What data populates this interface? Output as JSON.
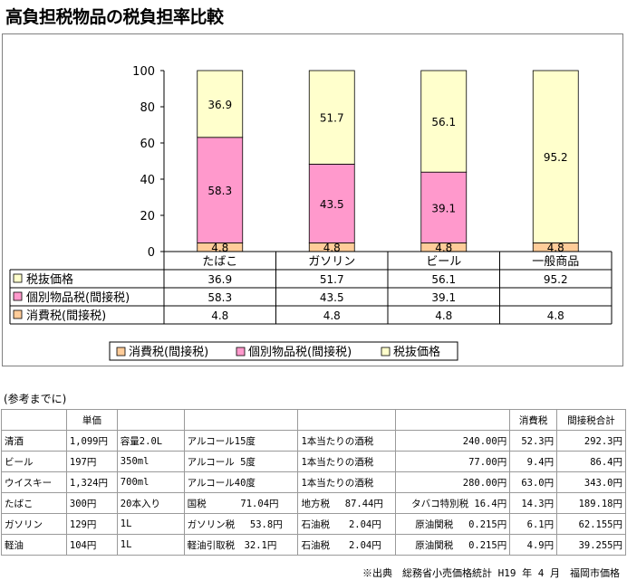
{
  "title": "高負担税物品の税負担率比較",
  "chart_data": {
    "type": "bar",
    "stacked": true,
    "categories": [
      "たばこ",
      "ガソリン",
      "ビール",
      "一般商品"
    ],
    "series": [
      {
        "name": "消費税(間接税)",
        "values": [
          4.8,
          4.8,
          4.8,
          4.8
        ],
        "color": "#ffcc99"
      },
      {
        "name": "個別物品税(間接税)",
        "values": [
          58.3,
          43.5,
          39.1,
          null
        ],
        "color": "#ff99cc"
      },
      {
        "name": "税抜価格",
        "values": [
          36.9,
          51.7,
          56.1,
          95.2
        ],
        "color": "#ffffcc"
      }
    ],
    "ylim": [
      0,
      100
    ],
    "yticks": [
      "0",
      "20",
      "40",
      "60",
      "80",
      "100"
    ],
    "legend_position": "bottom",
    "data_table": {
      "rows": [
        {
          "label": "税抜価格",
          "values": [
            "36.9",
            "51.7",
            "56.1",
            "95.2"
          ]
        },
        {
          "label": "個別物品税(間接税)",
          "values": [
            "58.3",
            "43.5",
            "39.1",
            ""
          ]
        },
        {
          "label": "消費税(間接税)",
          "values": [
            "4.8",
            "4.8",
            "4.8",
            "4.8"
          ]
        }
      ]
    }
  },
  "reference": {
    "heading": "(参考までに)",
    "header": [
      "",
      "単価",
      "",
      "",
      "",
      "",
      "消費税",
      "間接税合計"
    ],
    "rows": [
      [
        "清酒",
        "1,099円",
        "容量2.0L",
        "アルコール15度",
        "1本当たりの酒税",
        "240.00円",
        "52.3円",
        "292.3円"
      ],
      [
        "ビール",
        "197円",
        "350ml",
        "アルコール 5度",
        "1本当たりの酒税",
        "77.00円",
        "9.4円",
        "86.4円"
      ],
      [
        "ウイスキー",
        "1,324円",
        "700ml",
        "アルコール40度",
        "1本当たりの酒税",
        "280.00円",
        "63.0円",
        "343.0円"
      ],
      [
        "たばこ",
        "300円",
        "20本入り",
        "国税　　　 71.04円",
        "地方税　 87.44円",
        "タバコ特別税 16.4円",
        "14.3円",
        "189.18円"
      ],
      [
        "ガソリン",
        "129円",
        "1L",
        "ガソリン税　 53.8円",
        "石油税　　2.04円",
        "原油関税　 0.215円",
        "6.1円",
        "62.155円"
      ],
      [
        "軽油",
        "104円",
        "1L",
        "軽油引取税　32.1円",
        "石油税　　2.04円",
        "原油関税　 0.215円",
        "4.9円",
        "39.255円"
      ]
    ]
  },
  "source": "※出典　総務省小売価格統計 H19 年 4 月　福岡市価格"
}
